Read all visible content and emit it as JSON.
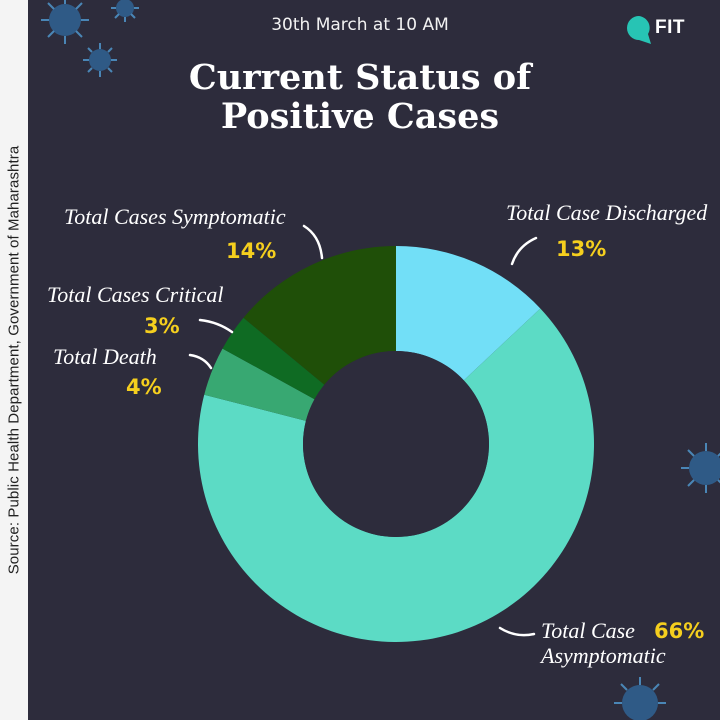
{
  "subtitle": "30th March at 10 AM",
  "title_line1": "Current Status of",
  "title_line2": "Positive Cases",
  "logo_text": "FIT",
  "source": "Source: Public Health Department, Government of Maharashtra",
  "colors": {
    "background": "#2d2c3c",
    "discharged": "#72dff7",
    "asymptomatic": "#5cdbc5",
    "death": "#38a872",
    "critical": "#0f6b23",
    "symptomatic": "#1f4f08",
    "percent_label": "#f5cf1e"
  },
  "chart_data": {
    "type": "pie",
    "donut": true,
    "slices": [
      {
        "name_line1": "Total Case Discharged",
        "name_line2": "",
        "value": 13,
        "label": "13%"
      },
      {
        "name_line1": "Total Case",
        "name_line2": "Asymptomatic",
        "value": 66,
        "label": "66%"
      },
      {
        "name_line1": "Total Death",
        "name_line2": "",
        "value": 4,
        "label": "4%"
      },
      {
        "name_line1": "Total Cases Critical",
        "name_line2": "",
        "value": 3,
        "label": "3%"
      },
      {
        "name_line1": "Total Cases Symptomatic",
        "name_line2": "",
        "value": 14,
        "label": "14%"
      }
    ]
  }
}
